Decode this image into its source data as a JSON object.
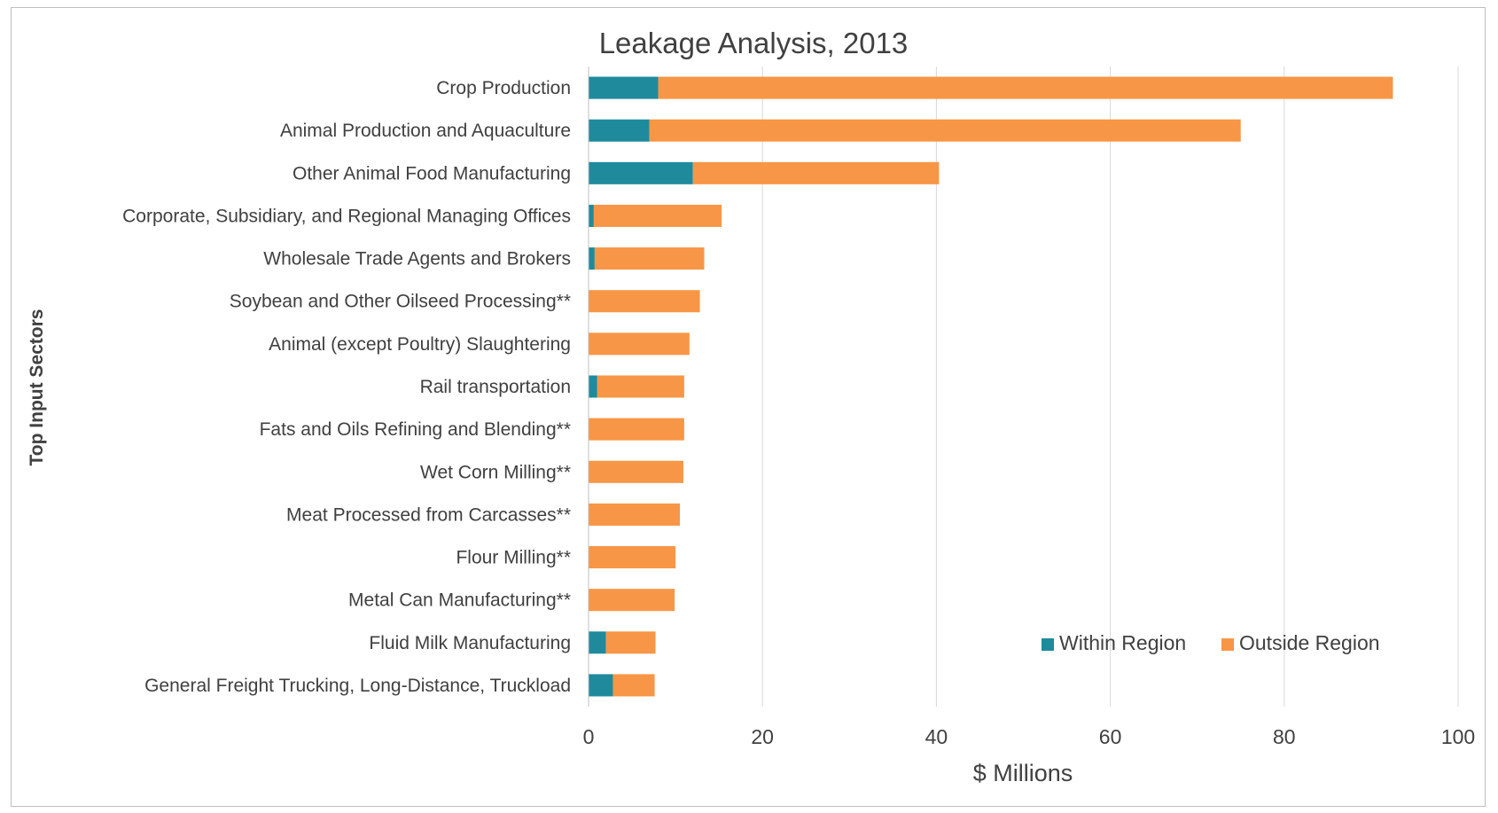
{
  "chart_data": {
    "type": "bar",
    "orientation": "horizontal",
    "stacked": true,
    "title": "Leakage Analysis, 2013",
    "xlabel": "$ Millions",
    "ylabel": "Top Input Sectors",
    "xlim": [
      0,
      100
    ],
    "xticks": [
      "0",
      "20",
      "40",
      "60",
      "80",
      "100"
    ],
    "grid": "vertical",
    "legend_position": "bottom-right",
    "categories": [
      "Crop Production",
      "Animal Production and Aquaculture",
      "Other Animal Food Manufacturing",
      "Corporate, Subsidiary, and Regional Managing Offices",
      "Wholesale Trade Agents and Brokers",
      "Soybean and Other Oilseed Processing**",
      "Animal (except Poultry) Slaughtering",
      "Rail transportation",
      "Fats and Oils Refining and Blending**",
      "Wet Corn Milling**",
      "Meat Processed from Carcasses**",
      "Flour Milling**",
      "Metal Can Manufacturing**",
      "Fluid Milk Manufacturing",
      "General Freight Trucking, Long-Distance, Truckload"
    ],
    "series": [
      {
        "name": "Within Region",
        "color": "#1f8a9c",
        "values": [
          8.0,
          7.0,
          12.0,
          0.6,
          0.7,
          0,
          0,
          1.0,
          0,
          0,
          0,
          0,
          0,
          2.0,
          2.8
        ]
      },
      {
        "name": "Outside Region",
        "color": "#f79646",
        "values": [
          84.5,
          68.0,
          28.3,
          14.7,
          12.6,
          12.8,
          11.6,
          10.0,
          11.0,
          10.9,
          10.5,
          10.0,
          9.9,
          5.7,
          4.8
        ]
      }
    ]
  }
}
